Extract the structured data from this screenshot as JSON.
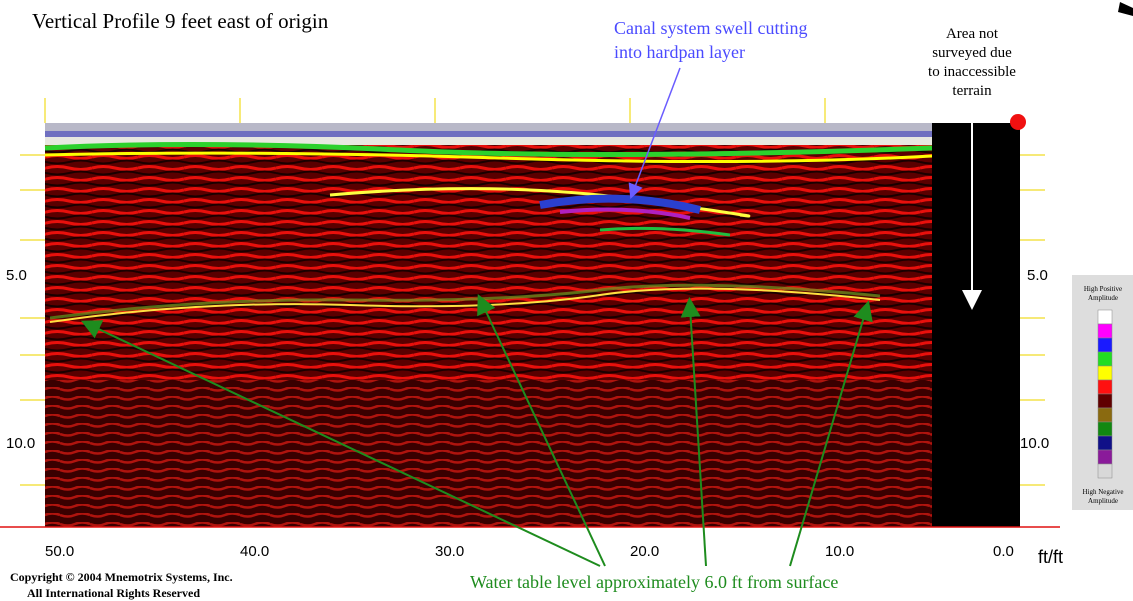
{
  "title": "Vertical Profile 9 feet east of origin",
  "annotations": {
    "canal": [
      "Canal system swell cutting",
      "into hardpan layer"
    ],
    "unsurveyed": [
      "Area not",
      "surveyed due",
      "to inaccessible",
      "terrain"
    ],
    "water_table": "Water table level approximately 6.0 ft from surface"
  },
  "x_axis": {
    "labels": [
      "50.0",
      "40.0",
      "30.0",
      "20.0",
      "10.0",
      "0.0"
    ],
    "unit": "ft/ft"
  },
  "y_axis": {
    "labels": [
      "5.0",
      "10.0"
    ]
  },
  "legend": {
    "top": [
      "High Positive",
      "Amplitude"
    ],
    "bottom": [
      "High Negative",
      "Amplitude"
    ]
  },
  "copyright": [
    "Copyright © 2004 Mnemotrix Systems, Inc.",
    "All International Rights Reserved"
  ]
}
